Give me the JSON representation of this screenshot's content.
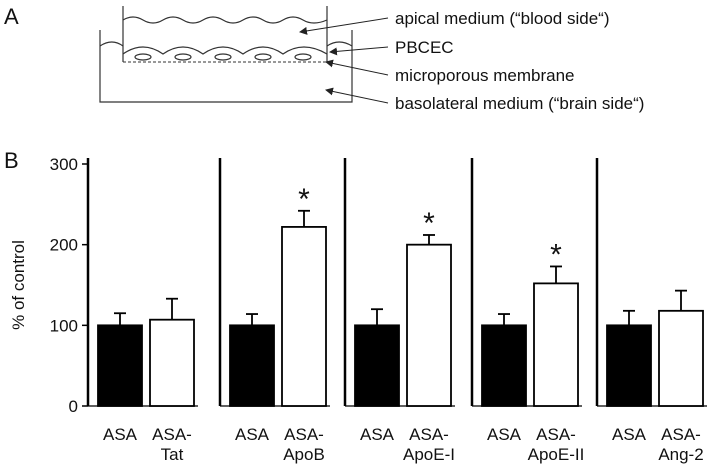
{
  "panel_a": {
    "label": "A",
    "texts": [
      "apical medium (“blood side“)",
      "PBCEC",
      "microporous membrane",
      "basolateral medium (“brain side“)"
    ]
  },
  "panel_b": {
    "label": "B"
  },
  "chart_data": [
    {
      "type": "bar",
      "ylabel": "% of control",
      "categories": [
        [
          "ASA"
        ],
        [
          "ASA-",
          "Tat"
        ]
      ],
      "values": [
        100,
        107
      ],
      "errors": [
        15,
        26
      ],
      "colors": [
        "#000000",
        "#ffffff"
      ],
      "ylim": [
        0,
        300
      ],
      "yticks": [
        0,
        100,
        200,
        300
      ]
    },
    {
      "type": "bar",
      "categories": [
        [
          "ASA"
        ],
        [
          "ASA-",
          "ApoB"
        ]
      ],
      "values": [
        100,
        222
      ],
      "errors": [
        14,
        20
      ],
      "colors": [
        "#000000",
        "#ffffff"
      ],
      "ylim": [
        0,
        300
      ],
      "annotation": "*"
    },
    {
      "type": "bar",
      "categories": [
        [
          "ASA"
        ],
        [
          "ASA-",
          "ApoE-I"
        ]
      ],
      "values": [
        100,
        200
      ],
      "errors": [
        20,
        12
      ],
      "colors": [
        "#000000",
        "#ffffff"
      ],
      "ylim": [
        0,
        300
      ],
      "annotation": "*"
    },
    {
      "type": "bar",
      "categories": [
        [
          "ASA"
        ],
        [
          "ASA-",
          "ApoE-II"
        ]
      ],
      "values": [
        100,
        152
      ],
      "errors": [
        14,
        21
      ],
      "colors": [
        "#000000",
        "#ffffff"
      ],
      "ylim": [
        0,
        300
      ],
      "annotation": "*"
    },
    {
      "type": "bar",
      "categories": [
        [
          "ASA"
        ],
        [
          "ASA-",
          "Ang-2"
        ]
      ],
      "values": [
        100,
        118
      ],
      "errors": [
        18,
        25
      ],
      "colors": [
        "#000000",
        "#ffffff"
      ],
      "ylim": [
        0,
        300
      ]
    }
  ]
}
